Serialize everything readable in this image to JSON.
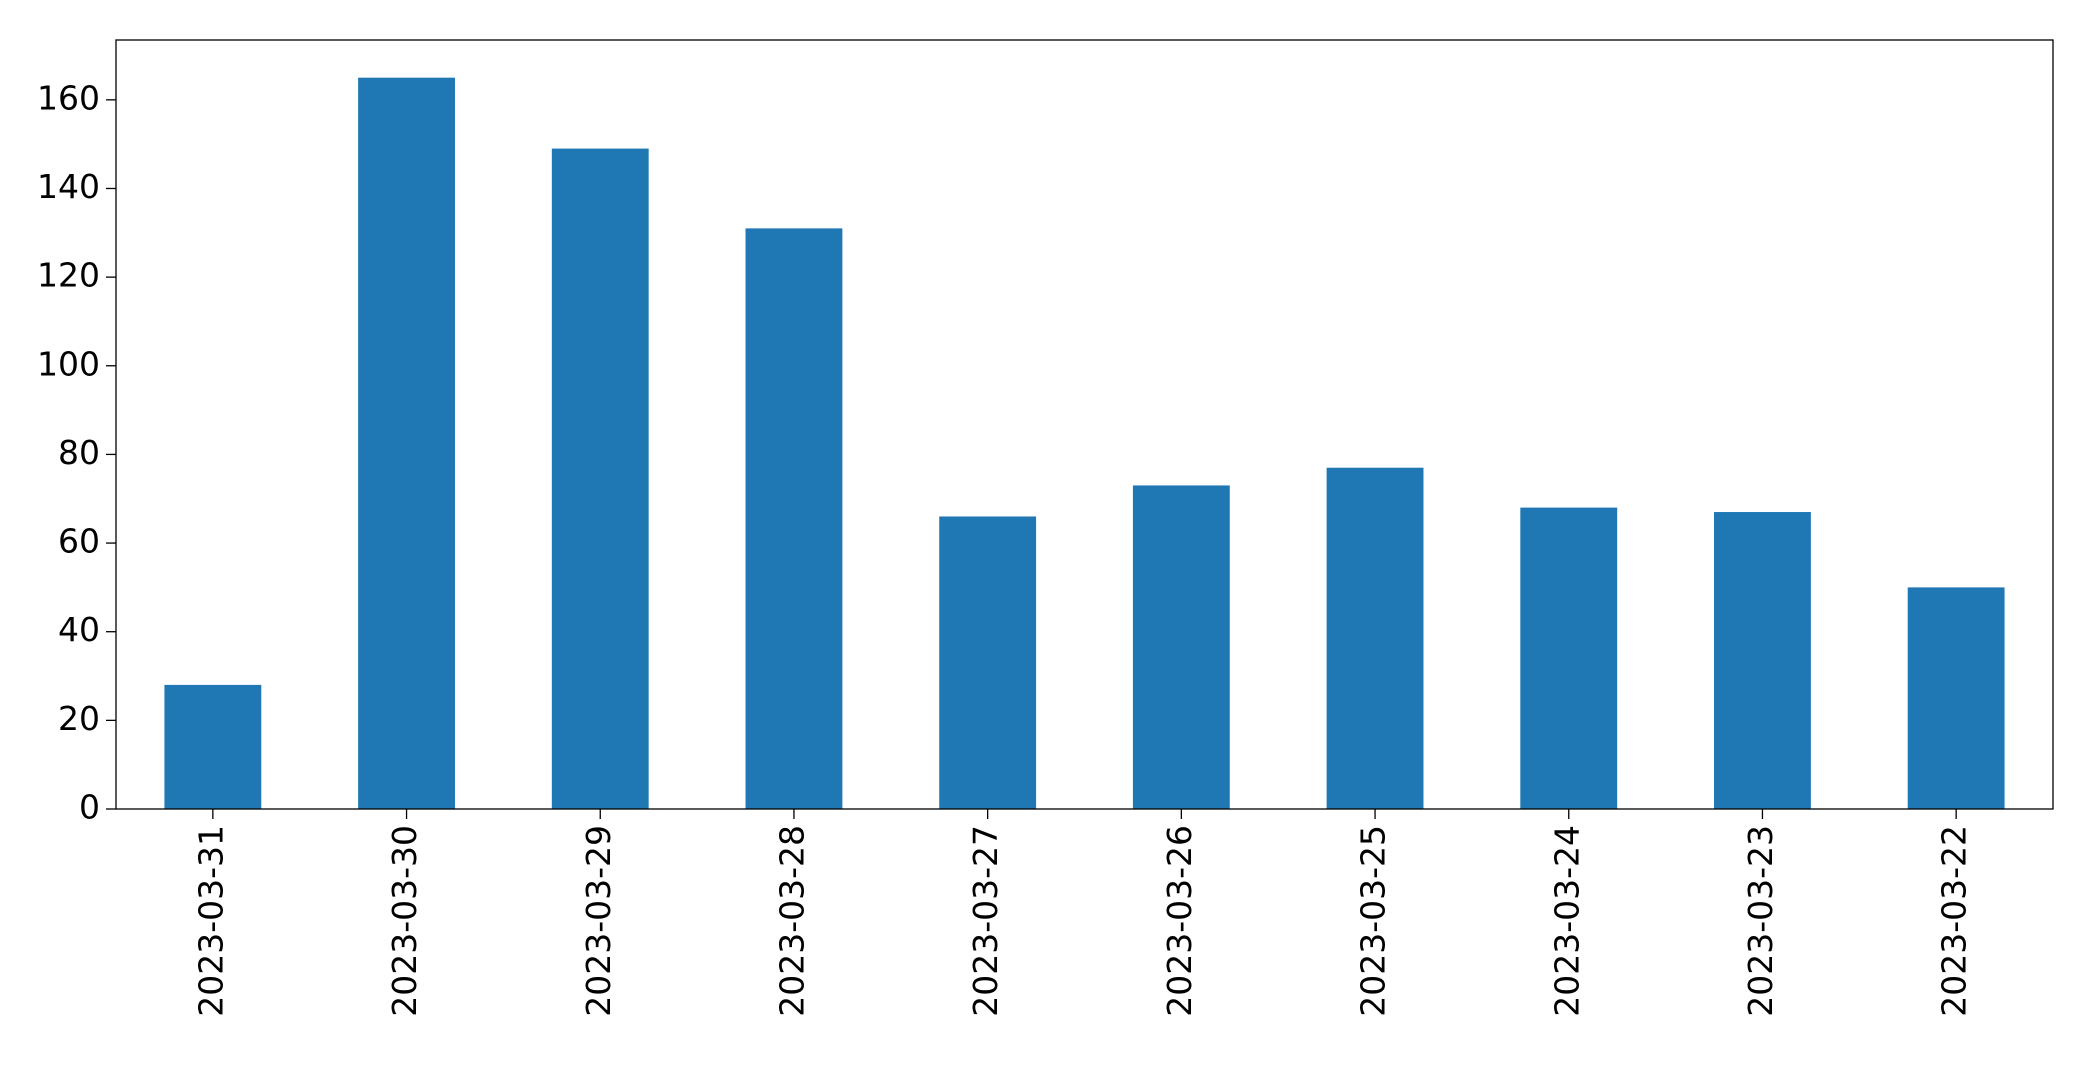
{
  "chart_data": {
    "type": "bar",
    "categories": [
      "2023-03-31",
      "2023-03-30",
      "2023-03-29",
      "2023-03-28",
      "2023-03-27",
      "2023-03-26",
      "2023-03-25",
      "2023-03-24",
      "2023-03-23",
      "2023-03-22"
    ],
    "values": [
      28,
      165,
      149,
      131,
      66,
      73,
      77,
      68,
      67,
      50
    ],
    "color": "#1f77b4",
    "ylim": [
      0,
      173.5
    ],
    "yticks": [
      0,
      20,
      40,
      60,
      80,
      100,
      120,
      140,
      160
    ],
    "grid": false
  }
}
